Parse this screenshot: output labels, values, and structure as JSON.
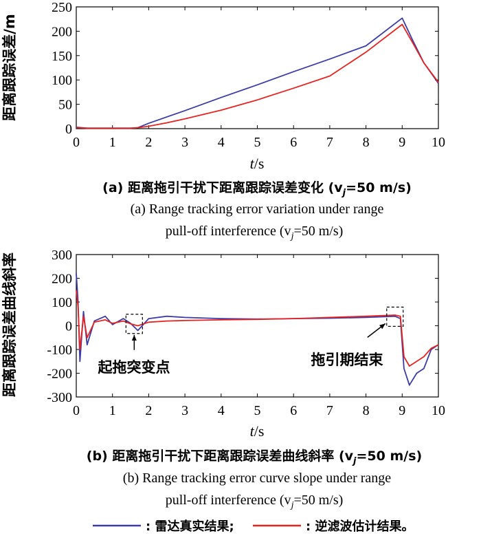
{
  "colors": {
    "series_true": "#3a3aa8",
    "series_est": "#e8221e"
  },
  "captions": {
    "a_cn": "(a) 距离拖引干扰下距离跟踪误差变化 (v",
    "a_cn_sub": "j",
    "a_cn_tail": "=50 m/s)",
    "a_en_line1": "(a) Range tracking error variation under range",
    "a_en_line2": "pull-off interference (v",
    "a_en_sub": "j",
    "a_en_tail": "=50 m/s)",
    "b_cn": "(b) 距离拖引干扰下距离跟踪误差曲线斜率 (v",
    "b_cn_sub": "j",
    "b_cn_tail": "=50 m/s)",
    "b_en_line1": "(b) Range tracking error curve slope under range",
    "b_en_line2": "pull-off interference (v",
    "b_en_sub": "j",
    "b_en_tail": "=50 m/s)"
  },
  "legend": {
    "item1": ": 雷达真实结果;",
    "item2": ": 逆滤波估计结果。"
  },
  "chart_data": [
    {
      "type": "line",
      "ylabel": "距离跟踪误差/m",
      "xlabel_var": "t",
      "xlabel_unit": "/s",
      "xlim": [
        0,
        10
      ],
      "ylim": [
        0,
        250
      ],
      "xticks": [
        0,
        1,
        2,
        3,
        4,
        5,
        6,
        7,
        8,
        9,
        10
      ],
      "yticks": [
        0,
        50,
        100,
        150,
        200,
        250
      ],
      "series": [
        {
          "name": "雷达真实结果",
          "x": [
            0,
            0.3,
            1.0,
            1.5,
            1.7,
            2.0,
            3.0,
            4.0,
            5.0,
            6.0,
            7.0,
            8.0,
            9.0,
            9.3,
            9.6,
            10.0
          ],
          "y": [
            3,
            1,
            1,
            1,
            2,
            11,
            37,
            64,
            90,
            117,
            143,
            170,
            227,
            180,
            135,
            93
          ]
        },
        {
          "name": "逆滤波估计结果",
          "x": [
            0,
            0.3,
            1.0,
            1.5,
            1.7,
            2.0,
            2.5,
            3.0,
            4.0,
            5.0,
            6.0,
            7.0,
            8.0,
            9.0,
            9.3,
            9.6,
            10.0
          ],
          "y": [
            2,
            1,
            1,
            1,
            2,
            5,
            12,
            20,
            38,
            59,
            83,
            108,
            157,
            214,
            175,
            135,
            95
          ]
        }
      ]
    },
    {
      "type": "line",
      "ylabel": "距离跟踪误差曲线斜率",
      "xlabel_var": "t",
      "xlabel_unit": "/s",
      "xlim": [
        0,
        10
      ],
      "ylim": [
        -300,
        300
      ],
      "xticks": [
        0,
        1,
        2,
        3,
        4,
        5,
        6,
        7,
        8,
        9,
        10
      ],
      "yticks": [
        -300,
        -200,
        -100,
        0,
        100,
        200,
        300
      ],
      "annotations": [
        {
          "text": "起拖突变点",
          "x": 1.6,
          "y": 8
        },
        {
          "text": "拖引期结束",
          "x": 8.8,
          "y": 38
        }
      ],
      "series": [
        {
          "name": "雷达真实结果",
          "x": [
            0,
            0.05,
            0.1,
            0.2,
            0.3,
            0.5,
            0.8,
            1.0,
            1.3,
            1.5,
            1.7,
            2.0,
            2.5,
            3.0,
            4.0,
            5.0,
            6.0,
            7.0,
            8.0,
            8.8,
            8.95,
            9.05,
            9.2,
            9.4,
            9.6,
            9.8,
            10.0
          ],
          "y": [
            220,
            100,
            -150,
            60,
            -80,
            20,
            40,
            5,
            30,
            10,
            -20,
            30,
            40,
            35,
            30,
            28,
            30,
            32,
            35,
            40,
            30,
            -180,
            -250,
            -200,
            -180,
            -100,
            -80
          ]
        },
        {
          "name": "逆滤波估计结果",
          "x": [
            0,
            0.05,
            0.1,
            0.2,
            0.3,
            0.5,
            0.8,
            1.0,
            1.3,
            1.5,
            1.7,
            2.0,
            2.5,
            3.0,
            4.0,
            5.0,
            6.0,
            7.0,
            8.0,
            8.8,
            8.95,
            9.05,
            9.2,
            9.4,
            9.6,
            9.8,
            10.0
          ],
          "y": [
            150,
            80,
            -100,
            40,
            -50,
            15,
            25,
            10,
            20,
            8,
            0,
            15,
            20,
            22,
            25,
            27,
            30,
            35,
            40,
            45,
            40,
            -130,
            -170,
            -150,
            -130,
            -95,
            -80
          ]
        }
      ]
    }
  ]
}
